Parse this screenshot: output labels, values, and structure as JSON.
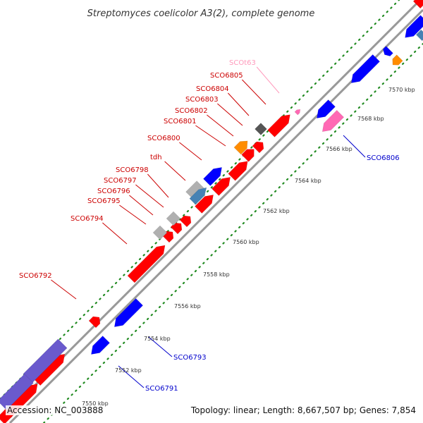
{
  "title": "Streptomyces coelicolor A3(2), complete genome",
  "footer": {
    "accession": "Accession: NC_003888",
    "topology": "Topology: linear; Length: 8,667,507 bp; Genes: 7,854"
  },
  "colors": {
    "background": "#ffffff",
    "backbone": "#999999",
    "tick_dots": "#228b22",
    "forward_gene": "#ff0000",
    "reverse_gene": "#0000ff",
    "rna_gene": "#ff69b4",
    "orange_gene": "#ff8c00",
    "gray_gene": "#b0b0b0",
    "dark_gray_gene": "#555555",
    "steel_gene": "#4682b4",
    "lavender_gene": "#6a5acd",
    "forward_label": "#cc0000",
    "reverse_label": "#0000cc",
    "trna_label": "#ff99bb"
  },
  "scale_ticks": [
    "7550 kbp",
    "7552 kbp",
    "7554 kbp",
    "7556 kbp",
    "7558 kbp",
    "7560 kbp",
    "7562 kbp",
    "7564 kbp",
    "7566 kbp",
    "7568 kbp",
    "7570 kbp"
  ],
  "forward_labels": [
    "SCOt63",
    "SCO6805",
    "SCO6804",
    "SCO6803",
    "SCO6802",
    "SCO6801",
    "SCO6800",
    "tdh",
    "SCO6798",
    "SCO6797",
    "SCO6796",
    "SCO6795",
    "SCO6794",
    "SCO6792"
  ],
  "reverse_labels": [
    "SCO6806",
    "SCO6793",
    "SCO6791"
  ]
}
